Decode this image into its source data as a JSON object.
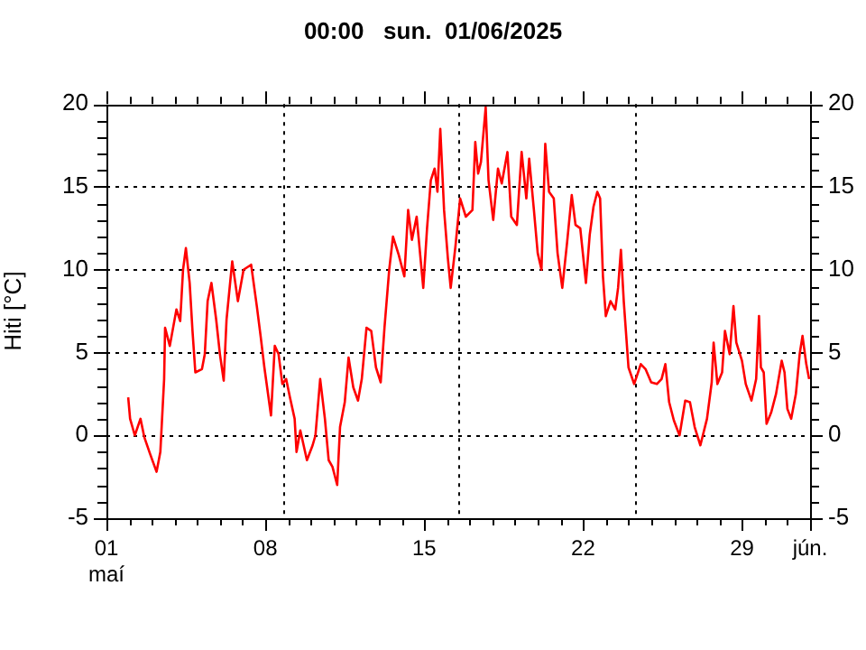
{
  "chart_data": {
    "type": "line",
    "title": "00:00   sun.  01/06/2025",
    "ylabel": "Hiti [°C]",
    "color": "#ff0000",
    "x": [
      "2025-05-01T23:00",
      "2025-05-02T01:00",
      "2025-05-02T06:00",
      "2025-05-02T12:00",
      "2025-05-02T16:00",
      "2025-05-02T22:00",
      "2025-05-03T05:00",
      "2025-05-03T09:00",
      "2025-05-03T13:00",
      "2025-05-03T14:00",
      "2025-05-03T19:00",
      "2025-05-04T02:00",
      "2025-05-04T06:00",
      "2025-05-04T09:00",
      "2025-05-04T12:00",
      "2025-05-04T16:00",
      "2025-05-04T19:00",
      "2025-05-04T22:00",
      "2025-05-05T05:00",
      "2025-05-05T08:00",
      "2025-05-05T11:00",
      "2025-05-05T15:00",
      "2025-05-05T20:00",
      "2025-05-06T00:00",
      "2025-05-06T04:00",
      "2025-05-06T07:00",
      "2025-05-06T13:00",
      "2025-05-06T19:00",
      "2025-05-07T01:00",
      "2025-05-07T09:00",
      "2025-05-07T15:00",
      "2025-05-07T19:00",
      "2025-05-07T23:00",
      "2025-05-08T06:00",
      "2025-05-08T10:00",
      "2025-05-08T14:00",
      "2025-05-08T18:00",
      "2025-05-08T22:00",
      "2025-05-09T02:00",
      "2025-05-09T07:00",
      "2025-05-09T09:00",
      "2025-05-09T13:00",
      "2025-05-09T20:00",
      "2025-05-10T02:00",
      "2025-05-10T05:00",
      "2025-05-10T10:00",
      "2025-05-10T15:00",
      "2025-05-10T19:00",
      "2025-05-10T23:00",
      "2025-05-11T04:00",
      "2025-05-11T07:00",
      "2025-05-11T12:00",
      "2025-05-11T16:00",
      "2025-05-11T21:00",
      "2025-05-12T02:00",
      "2025-05-12T06:00",
      "2025-05-12T11:00",
      "2025-05-12T16:00",
      "2025-05-12T21:00",
      "2025-05-13T02:00",
      "2025-05-13T06:00",
      "2025-05-13T11:00",
      "2025-05-13T15:00",
      "2025-05-13T21:00",
      "2025-05-14T03:00",
      "2025-05-14T07:00",
      "2025-05-14T11:00",
      "2025-05-14T16:00",
      "2025-05-14T23:00",
      "2025-05-15T03:00",
      "2025-05-15T07:00",
      "2025-05-15T11:00",
      "2025-05-15T14:00",
      "2025-05-15T17:00",
      "2025-05-15T21:00",
      "2025-05-16T01:00",
      "2025-05-16T04:00",
      "2025-05-16T09:00",
      "2025-05-16T14:00",
      "2025-05-16T20:00",
      "2025-05-17T03:00",
      "2025-05-17T06:00",
      "2025-05-17T09:00",
      "2025-05-17T12:00",
      "2025-05-17T17:00",
      "2025-05-17T20:00",
      "2025-05-18T01:00",
      "2025-05-18T06:00",
      "2025-05-18T10:00",
      "2025-05-18T16:00",
      "2025-05-18T20:00",
      "2025-05-19T02:00",
      "2025-05-19T07:00",
      "2025-05-19T12:00",
      "2025-05-19T15:00",
      "2025-05-19T20:00",
      "2025-05-20T00:00",
      "2025-05-20T04:00",
      "2025-05-20T08:00",
      "2025-05-20T12:00",
      "2025-05-20T17:00",
      "2025-05-20T21:00",
      "2025-05-21T02:00",
      "2025-05-21T07:00",
      "2025-05-21T12:00",
      "2025-05-21T16:00",
      "2025-05-21T21:00",
      "2025-05-22T03:00",
      "2025-05-22T07:00",
      "2025-05-22T11:00",
      "2025-05-22T15:00",
      "2025-05-22T18:00",
      "2025-05-22T21:00",
      "2025-05-23T00:00",
      "2025-05-23T05:00",
      "2025-05-23T10:00",
      "2025-05-23T13:00",
      "2025-05-23T16:00",
      "2025-05-23T19:00",
      "2025-05-24T00:00",
      "2025-05-24T06:00",
      "2025-05-24T13:00",
      "2025-05-24T18:00",
      "2025-05-25T00:00",
      "2025-05-25T06:00",
      "2025-05-25T11:00",
      "2025-05-25T15:00",
      "2025-05-25T19:00",
      "2025-05-26T00:00",
      "2025-05-26T06:00",
      "2025-05-26T12:00",
      "2025-05-26T17:00",
      "2025-05-26T22:00",
      "2025-05-27T04:00",
      "2025-05-27T11:00",
      "2025-05-27T16:00",
      "2025-05-27T18:00",
      "2025-05-27T22:00",
      "2025-05-28T03:00",
      "2025-05-28T06:00",
      "2025-05-28T11:00",
      "2025-05-28T15:00",
      "2025-05-28T18:00",
      "2025-05-29T00:00",
      "2025-05-29T04:00",
      "2025-05-29T10:00",
      "2025-05-29T15:00",
      "2025-05-29T18:00",
      "2025-05-29T20:00",
      "2025-05-29T23:00",
      "2025-05-30T02:00",
      "2025-05-30T07:00",
      "2025-05-30T12:00",
      "2025-05-30T18:00",
      "2025-05-30T21:00",
      "2025-05-31T00:00",
      "2025-05-31T04:00",
      "2025-05-31T09:00",
      "2025-05-31T13:00",
      "2025-05-31T16:00",
      "2025-05-31T20:00",
      "2025-05-31T23:00"
    ],
    "values": [
      2.3,
      1.0,
      0.0,
      1.0,
      -0.1,
      -1.1,
      -2.2,
      -1.0,
      3.4,
      6.5,
      5.4,
      7.6,
      6.9,
      10.0,
      11.3,
      9.2,
      6.3,
      3.8,
      4.0,
      4.9,
      8.1,
      9.2,
      7.0,
      4.9,
      3.3,
      7.0,
      10.5,
      8.1,
      10.0,
      10.3,
      7.8,
      6.0,
      4.1,
      1.2,
      5.4,
      4.9,
      3.1,
      3.4,
      2.3,
      1.0,
      -1.0,
      0.3,
      -1.5,
      -0.6,
      0.0,
      3.4,
      1.0,
      -1.5,
      -1.9,
      -3.0,
      0.5,
      2.0,
      4.7,
      2.9,
      2.1,
      3.4,
      6.5,
      6.3,
      4.1,
      3.2,
      6.5,
      10.0,
      12.0,
      10.9,
      9.6,
      13.6,
      11.8,
      13.2,
      8.9,
      12.5,
      15.4,
      16.1,
      14.7,
      18.5,
      13.6,
      10.7,
      8.9,
      11.4,
      14.3,
      13.2,
      13.6,
      17.7,
      15.8,
      16.5,
      19.8,
      15.4,
      13.0,
      16.1,
      15.2,
      17.1,
      13.2,
      12.7,
      17.1,
      14.3,
      16.7,
      13.6,
      11.0,
      10.0,
      17.6,
      14.7,
      14.3,
      11.0,
      8.9,
      11.6,
      14.5,
      12.7,
      12.5,
      9.2,
      12.1,
      13.8,
      14.7,
      14.3,
      9.6,
      7.2,
      8.1,
      7.6,
      8.9,
      11.2,
      8.1,
      4.1,
      3.1,
      4.3,
      4.0,
      3.2,
      3.1,
      3.4,
      4.3,
      2.0,
      0.9,
      0.0,
      2.1,
      2.0,
      0.5,
      -0.6,
      1.0,
      3.2,
      5.6,
      3.1,
      3.8,
      6.3,
      4.9,
      7.8,
      5.6,
      4.5,
      3.1,
      2.1,
      3.4,
      7.2,
      4.1,
      3.8,
      0.7,
      1.4,
      2.5,
      4.5,
      3.8,
      1.6,
      1.0,
      2.5,
      4.9,
      6.0,
      4.3,
      3.4
    ],
    "xlim": [
      "2025-05-01T00:00",
      "2025-06-01T00:00"
    ],
    "xticks": [
      {
        "value": "2025-05-01",
        "label": "01\nmaí"
      },
      {
        "value": "2025-05-02",
        "label": null
      },
      {
        "value": "2025-05-03",
        "label": null
      },
      {
        "value": "2025-05-04",
        "label": null
      },
      {
        "value": "2025-05-05",
        "label": null
      },
      {
        "value": "2025-05-06",
        "label": null
      },
      {
        "value": "2025-05-07",
        "label": null
      },
      {
        "value": "2025-05-08",
        "label": "08"
      },
      {
        "value": "2025-05-09",
        "label": null
      },
      {
        "value": "2025-05-10",
        "label": null
      },
      {
        "value": "2025-05-11",
        "label": null
      },
      {
        "value": "2025-05-12",
        "label": null
      },
      {
        "value": "2025-05-13",
        "label": null
      },
      {
        "value": "2025-05-14",
        "label": null
      },
      {
        "value": "2025-05-15",
        "label": "15"
      },
      {
        "value": "2025-05-16",
        "label": null
      },
      {
        "value": "2025-05-17",
        "label": null
      },
      {
        "value": "2025-05-18",
        "label": null
      },
      {
        "value": "2025-05-19",
        "label": null
      },
      {
        "value": "2025-05-20",
        "label": null
      },
      {
        "value": "2025-05-21",
        "label": null
      },
      {
        "value": "2025-05-22",
        "label": "22"
      },
      {
        "value": "2025-05-23",
        "label": null
      },
      {
        "value": "2025-05-24",
        "label": null
      },
      {
        "value": "2025-05-25",
        "label": null
      },
      {
        "value": "2025-05-26",
        "label": null
      },
      {
        "value": "2025-05-27",
        "label": null
      },
      {
        "value": "2025-05-28",
        "label": null
      },
      {
        "value": "2025-05-29",
        "label": "29"
      },
      {
        "value": "2025-05-30",
        "label": null
      },
      {
        "value": "2025-05-31",
        "label": null
      },
      {
        "value": "2025-06-01",
        "label": "jún."
      }
    ],
    "ylim": [
      -5,
      20
    ],
    "yticks": [
      -5,
      {
        "value": -4,
        "label": null
      },
      {
        "value": -3,
        "label": null
      },
      {
        "value": -2,
        "label": null
      },
      {
        "value": -1,
        "label": null
      },
      0,
      {
        "value": 1,
        "label": null
      },
      {
        "value": 2,
        "label": null
      },
      {
        "value": 3,
        "label": null
      },
      {
        "value": 4,
        "label": null
      },
      5,
      {
        "value": 6,
        "label": null
      },
      {
        "value": 7,
        "label": null
      },
      {
        "value": 8,
        "label": null
      },
      {
        "value": 9,
        "label": null
      },
      10,
      {
        "value": 11,
        "label": null
      },
      {
        "value": 12,
        "label": null
      },
      {
        "value": 13,
        "label": null
      },
      {
        "value": 14,
        "label": null
      },
      15,
      {
        "value": 16,
        "label": null
      },
      {
        "value": 17,
        "label": null
      },
      {
        "value": 18,
        "label": null
      },
      {
        "value": 19,
        "label": null
      },
      20
    ],
    "y2lim": [
      -5,
      20
    ],
    "y2ticks": [
      -5,
      {
        "value": -4,
        "label": null
      },
      {
        "value": -3,
        "label": null
      },
      {
        "value": -2,
        "label": null
      },
      {
        "value": -1,
        "label": null
      },
      0,
      {
        "value": 1,
        "label": null
      },
      {
        "value": 2,
        "label": null
      },
      {
        "value": 3,
        "label": null
      },
      {
        "value": 4,
        "label": null
      },
      5,
      {
        "value": 6,
        "label": null
      },
      {
        "value": 7,
        "label": null
      },
      {
        "value": 8,
        "label": null
      },
      {
        "value": 9,
        "label": null
      },
      10,
      {
        "value": 11,
        "label": null
      },
      {
        "value": 12,
        "label": null
      },
      {
        "value": 13,
        "label": null
      },
      {
        "value": 14,
        "label": null
      },
      15,
      {
        "value": 16,
        "label": null
      },
      {
        "value": 17,
        "label": null
      },
      {
        "value": 18,
        "label": null
      },
      {
        "value": 19,
        "label": null
      },
      20
    ],
    "grid": "y",
    "ref_lines": [
      {
        "axis": "x",
        "value": "2025-05-08T19:00",
        "label": null
      },
      {
        "axis": "x",
        "value": "2025-05-16T12:00",
        "label": null
      },
      {
        "axis": "x",
        "value": "2025-05-24T07:00",
        "label": null
      }
    ]
  }
}
